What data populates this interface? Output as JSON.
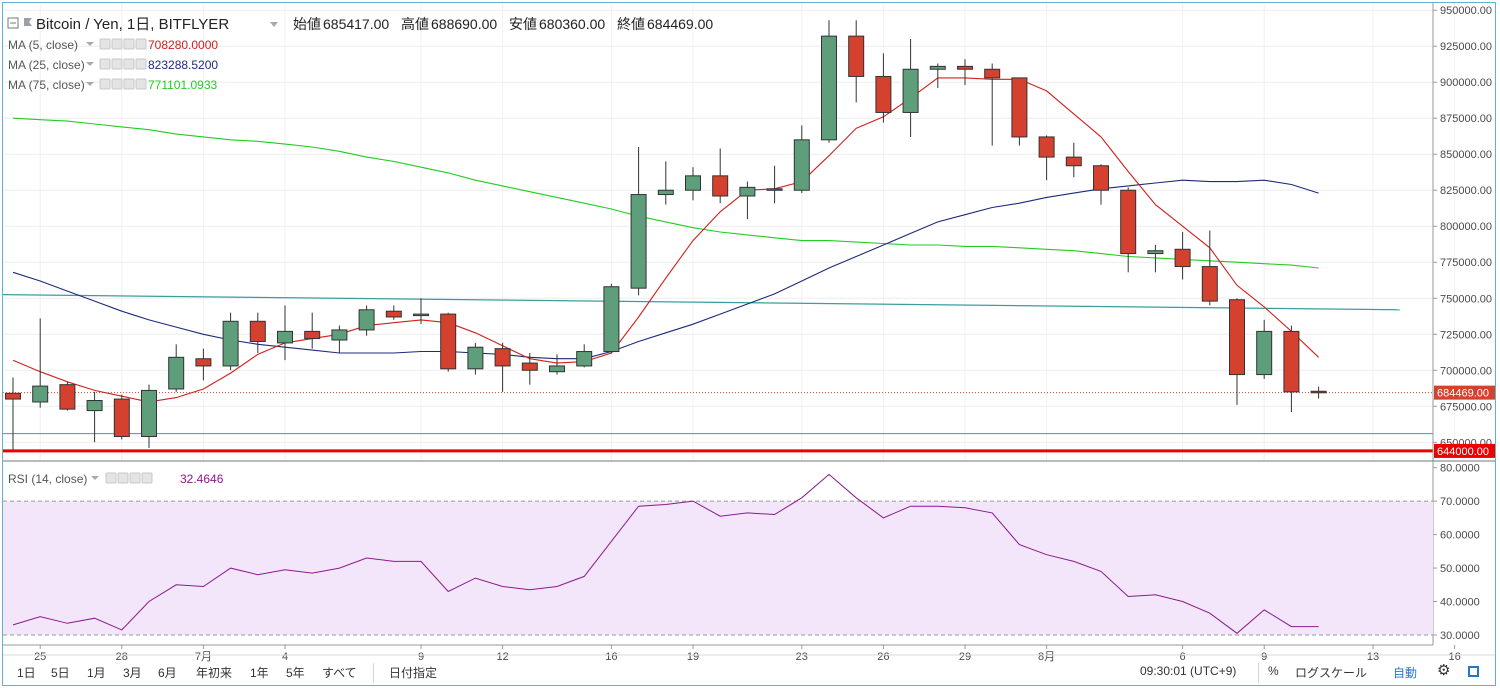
{
  "header": {
    "symbol": "Bitcoin / Yen, 1日, BITFLYER",
    "ohlc_label_open": "始値",
    "open": "685417.00",
    "ohlc_label_high": "高値",
    "high": "688690.00",
    "ohlc_label_low": "安値",
    "low": "680360.00",
    "ohlc_label_close": "終値",
    "close": "684469.00"
  },
  "indicators": [
    {
      "label": "MA (5, close)",
      "value": "708280.0000",
      "color": "#d0201a"
    },
    {
      "label": "MA (25, close)",
      "value": "823288.5200",
      "color": "#1d2a7a"
    },
    {
      "label": "MA (75, close)",
      "value": "771101.0933",
      "color": "#22cc22"
    }
  ],
  "rsi": {
    "label": "RSI (14, close)",
    "value": "32.4646",
    "color": "#8b1a8b"
  },
  "price_axis": {
    "ticks": [
      "950000.00",
      "925000.00",
      "900000.00",
      "875000.00",
      "850000.00",
      "825000.00",
      "800000.00",
      "775000.00",
      "750000.00",
      "725000.00",
      "700000.00",
      "675000.00",
      "650000.00"
    ],
    "last_price_label": "684469.00",
    "hline_label": "644000.00"
  },
  "rsi_axis": {
    "ticks": [
      "80.0000",
      "70.0000",
      "60.0000",
      "50.0000",
      "40.0000",
      "30.0000"
    ]
  },
  "time_axis": {
    "labels": [
      {
        "i": 1,
        "text": "25"
      },
      {
        "i": 4,
        "text": "28"
      },
      {
        "i": 7,
        "text": "7月"
      },
      {
        "i": 10,
        "text": "4"
      },
      {
        "i": 15,
        "text": "9"
      },
      {
        "i": 18,
        "text": "12"
      },
      {
        "i": 22,
        "text": "16"
      },
      {
        "i": 25,
        "text": "19"
      },
      {
        "i": 29,
        "text": "23"
      },
      {
        "i": 32,
        "text": "26"
      },
      {
        "i": 35,
        "text": "29"
      },
      {
        "i": 38,
        "text": "8月"
      },
      {
        "i": 43,
        "text": "6"
      },
      {
        "i": 46,
        "text": "9"
      },
      {
        "i": 50,
        "text": "13"
      },
      {
        "i": 53,
        "text": "16"
      }
    ]
  },
  "bottom_bar": {
    "ranges": [
      "1日",
      "5日",
      "1月",
      "3月",
      "6月",
      "年初来",
      "1年",
      "5年",
      "すべて"
    ],
    "date_button": "日付指定",
    "clock": "09:30:01 (UTC+9)",
    "percent": "%",
    "log_scale": "ログスケール",
    "auto": "自動"
  },
  "colors": {
    "up": "#5e9e7a",
    "down": "#d5412f",
    "rsi_band": "#f3e6fb"
  },
  "chart_data": {
    "type": "candlestick",
    "title": "Bitcoin / Yen, 1日, BITFLYER",
    "ylim": [
      637000,
      955000
    ],
    "candles": [
      {
        "o": 684000,
        "h": 695000,
        "l": 645000,
        "c": 680000
      },
      {
        "o": 678000,
        "h": 736000,
        "l": 674000,
        "c": 689000
      },
      {
        "o": 690000,
        "h": 692000,
        "l": 672000,
        "c": 673000
      },
      {
        "o": 672000,
        "h": 685000,
        "l": 650000,
        "c": 679000
      },
      {
        "o": 680000,
        "h": 683000,
        "l": 652000,
        "c": 654000
      },
      {
        "o": 654000,
        "h": 690000,
        "l": 646000,
        "c": 686000
      },
      {
        "o": 687000,
        "h": 718000,
        "l": 685000,
        "c": 709000
      },
      {
        "o": 708000,
        "h": 715000,
        "l": 693000,
        "c": 703000
      },
      {
        "o": 703000,
        "h": 740000,
        "l": 700000,
        "c": 734000
      },
      {
        "o": 734000,
        "h": 740000,
        "l": 712000,
        "c": 720000
      },
      {
        "o": 719000,
        "h": 745000,
        "l": 707000,
        "c": 727000
      },
      {
        "o": 727000,
        "h": 740000,
        "l": 715000,
        "c": 722000
      },
      {
        "o": 721000,
        "h": 731000,
        "l": 712000,
        "c": 728000
      },
      {
        "o": 728000,
        "h": 745000,
        "l": 724000,
        "c": 742000
      },
      {
        "o": 741000,
        "h": 745000,
        "l": 735000,
        "c": 737000
      },
      {
        "o": 738000,
        "h": 750000,
        "l": 732000,
        "c": 739000
      },
      {
        "o": 739000,
        "h": 740000,
        "l": 699000,
        "c": 701000
      },
      {
        "o": 701000,
        "h": 719000,
        "l": 697000,
        "c": 716000
      },
      {
        "o": 715000,
        "h": 719000,
        "l": 685000,
        "c": 703000
      },
      {
        "o": 705000,
        "h": 712000,
        "l": 690000,
        "c": 700000
      },
      {
        "o": 699000,
        "h": 711000,
        "l": 697000,
        "c": 703000
      },
      {
        "o": 703000,
        "h": 718000,
        "l": 702000,
        "c": 713000
      },
      {
        "o": 713000,
        "h": 760000,
        "l": 712000,
        "c": 758000
      },
      {
        "o": 757000,
        "h": 855000,
        "l": 752000,
        "c": 822000
      },
      {
        "o": 822000,
        "h": 845000,
        "l": 815000,
        "c": 825000
      },
      {
        "o": 825000,
        "h": 841000,
        "l": 818000,
        "c": 835000
      },
      {
        "o": 835000,
        "h": 854000,
        "l": 816000,
        "c": 821000
      },
      {
        "o": 821000,
        "h": 831000,
        "l": 805000,
        "c": 827000
      },
      {
        "o": 826000,
        "h": 842000,
        "l": 816000,
        "c": 825000
      },
      {
        "o": 825000,
        "h": 870000,
        "l": 823000,
        "c": 860000
      },
      {
        "o": 860000,
        "h": 943000,
        "l": 858000,
        "c": 932000
      },
      {
        "o": 932000,
        "h": 943000,
        "l": 886000,
        "c": 904000
      },
      {
        "o": 904000,
        "h": 920000,
        "l": 872000,
        "c": 879000
      },
      {
        "o": 879000,
        "h": 930000,
        "l": 862000,
        "c": 909000
      },
      {
        "o": 909000,
        "h": 913000,
        "l": 896000,
        "c": 911000
      },
      {
        "o": 911000,
        "h": 916000,
        "l": 898000,
        "c": 909000
      },
      {
        "o": 909000,
        "h": 913000,
        "l": 856000,
        "c": 903000
      },
      {
        "o": 903000,
        "h": 903000,
        "l": 856000,
        "c": 862000
      },
      {
        "o": 862000,
        "h": 863000,
        "l": 832000,
        "c": 848000
      },
      {
        "o": 848000,
        "h": 858000,
        "l": 834000,
        "c": 842000
      },
      {
        "o": 842000,
        "h": 843000,
        "l": 815000,
        "c": 825000
      },
      {
        "o": 825000,
        "h": 827000,
        "l": 768000,
        "c": 781000
      },
      {
        "o": 781000,
        "h": 787000,
        "l": 768000,
        "c": 783000
      },
      {
        "o": 784000,
        "h": 796000,
        "l": 763000,
        "c": 772000
      },
      {
        "o": 772000,
        "h": 797000,
        "l": 745000,
        "c": 748000
      },
      {
        "o": 749000,
        "h": 750000,
        "l": 676000,
        "c": 697000
      },
      {
        "o": 697000,
        "h": 735000,
        "l": 694000,
        "c": 727000
      },
      {
        "o": 727000,
        "h": 731000,
        "l": 671000,
        "c": 685000
      },
      {
        "o": 685417,
        "h": 688690,
        "l": 680360,
        "c": 684469
      }
    ],
    "ma5": [
      707000,
      699000,
      692000,
      686000,
      682000,
      678000,
      681000,
      687000,
      698000,
      711000,
      719000,
      722000,
      725000,
      731000,
      733000,
      735000,
      733000,
      726000,
      717000,
      708000,
      705000,
      706000,
      712000,
      737000,
      764000,
      790000,
      810000,
      825000,
      826000,
      831000,
      849000,
      868000,
      876000,
      889000,
      903000,
      903000,
      902000,
      902000,
      894000,
      878000,
      862000,
      838000,
      815000,
      800000,
      785000,
      759000,
      744000,
      727000,
      709000
    ],
    "ma25": [
      768000,
      762000,
      755000,
      748000,
      741000,
      735000,
      730000,
      725000,
      721000,
      718000,
      716000,
      714000,
      712000,
      712000,
      712000,
      713000,
      713000,
      712000,
      711000,
      709000,
      708000,
      708000,
      713000,
      720000,
      726000,
      732000,
      739000,
      746000,
      753000,
      762000,
      771000,
      779000,
      787000,
      795000,
      803000,
      808000,
      813000,
      816000,
      820000,
      823000,
      826000,
      828000,
      830000,
      832000,
      831000,
      831000,
      832000,
      829000,
      823000
    ],
    "ma75": [
      875000,
      874000,
      873000,
      871000,
      869000,
      867000,
      864000,
      862000,
      860000,
      859000,
      857000,
      855000,
      852000,
      848000,
      845000,
      841000,
      837000,
      832000,
      828000,
      824000,
      820000,
      816000,
      812000,
      807000,
      803000,
      799000,
      796000,
      794000,
      792000,
      790000,
      790000,
      789000,
      788000,
      787000,
      787000,
      786000,
      786000,
      785000,
      784000,
      783000,
      781000,
      779000,
      778000,
      777000,
      776000,
      775000,
      774000,
      773000,
      771000
    ],
    "rsi_values": [
      33,
      35.5,
      33.5,
      35,
      31.5,
      40,
      45,
      44.5,
      50,
      48,
      49.5,
      48.5,
      50,
      53,
      52,
      52,
      43,
      47,
      44.5,
      43.5,
      44.5,
      47.5,
      58,
      68.5,
      69,
      70,
      65.5,
      66.5,
      66,
      71,
      78,
      71,
      65,
      68.5,
      68.5,
      68,
      66.5,
      57,
      54,
      52,
      49,
      41.5,
      42,
      40,
      36.5,
      30.5,
      37.5,
      32.5,
      32.5
    ],
    "rsi_ylim": [
      27,
      82
    ],
    "rsi_band": [
      30,
      70
    ],
    "trendline": {
      "from": [
        0,
        752500
      ],
      "to": [
        51,
        742000
      ]
    },
    "support_line": 656000,
    "hline": 644000,
    "last_price": 684469
  }
}
